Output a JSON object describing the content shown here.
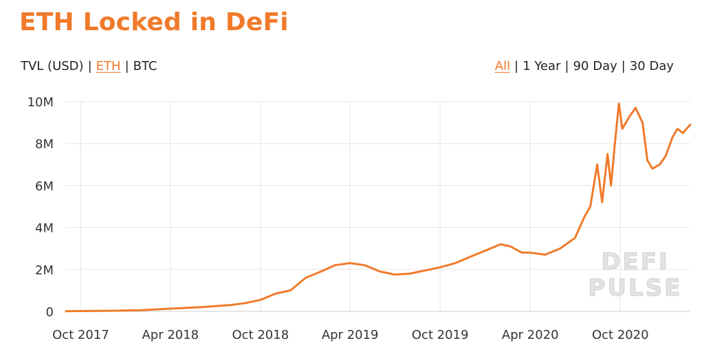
{
  "page": {
    "title": "ETH Locked in DeFi"
  },
  "unit_toggle": [
    {
      "label": "TVL (USD)",
      "active": false
    },
    {
      "label": "ETH",
      "active": true
    },
    {
      "label": "BTC",
      "active": false
    }
  ],
  "range_toggle": [
    {
      "label": "All",
      "active": true
    },
    {
      "label": "1 Year",
      "active": false
    },
    {
      "label": "90 Day",
      "active": false
    },
    {
      "label": "30 Day",
      "active": false
    }
  ],
  "separator": "|",
  "watermark": {
    "line1": "DEFI",
    "line2": "PULSE"
  },
  "colors": {
    "accent": "#f07a2a",
    "line": "#f07a2a",
    "grid": "#e6e6e6",
    "watermark": "#d9d9d9"
  },
  "chart_data": {
    "type": "line",
    "title": "ETH Locked in DeFi",
    "xlabel": "",
    "ylabel": "",
    "x_is_date": true,
    "xlim": [
      "2017-09-01",
      "2021-02-20"
    ],
    "ylim": [
      0,
      10000000
    ],
    "y_ticks": [
      0,
      2000000,
      4000000,
      6000000,
      8000000,
      10000000
    ],
    "y_tick_labels": [
      "0",
      "2M",
      "4M",
      "6M",
      "8M",
      "10M"
    ],
    "x_ticks": [
      "2017-10-01",
      "2018-04-01",
      "2018-10-01",
      "2019-04-01",
      "2019-10-01",
      "2020-04-01",
      "2020-10-01"
    ],
    "x_tick_labels": [
      "Oct 2017",
      "Apr 2018",
      "Oct 2018",
      "Apr 2019",
      "Oct 2019",
      "Apr 2020",
      "Oct 2020"
    ],
    "grid": true,
    "series": [
      {
        "points": [
          [
            "2017-09-01",
            10000
          ],
          [
            "2017-12-01",
            30000
          ],
          [
            "2018-02-01",
            60000
          ],
          [
            "2018-04-01",
            130000
          ],
          [
            "2018-06-01",
            200000
          ],
          [
            "2018-08-01",
            300000
          ],
          [
            "2018-09-01",
            400000
          ],
          [
            "2018-10-01",
            550000
          ],
          [
            "2018-11-01",
            850000
          ],
          [
            "2018-12-01",
            1000000
          ],
          [
            "2019-01-01",
            1600000
          ],
          [
            "2019-02-01",
            1900000
          ],
          [
            "2019-03-01",
            2200000
          ],
          [
            "2019-04-01",
            2300000
          ],
          [
            "2019-05-01",
            2200000
          ],
          [
            "2019-06-01",
            1900000
          ],
          [
            "2019-07-01",
            1750000
          ],
          [
            "2019-08-01",
            1800000
          ],
          [
            "2019-09-01",
            1950000
          ],
          [
            "2019-10-01",
            2100000
          ],
          [
            "2019-11-01",
            2300000
          ],
          [
            "2019-12-01",
            2600000
          ],
          [
            "2020-01-01",
            2900000
          ],
          [
            "2020-02-01",
            3200000
          ],
          [
            "2020-02-20",
            3100000
          ],
          [
            "2020-03-15",
            2800000
          ],
          [
            "2020-04-01",
            2800000
          ],
          [
            "2020-05-01",
            2700000
          ],
          [
            "2020-06-01",
            3000000
          ],
          [
            "2020-07-01",
            3500000
          ],
          [
            "2020-07-20",
            4500000
          ],
          [
            "2020-08-01",
            5000000
          ],
          [
            "2020-08-15",
            7000000
          ],
          [
            "2020-08-25",
            5200000
          ],
          [
            "2020-09-05",
            7500000
          ],
          [
            "2020-09-12",
            6000000
          ],
          [
            "2020-09-20",
            8000000
          ],
          [
            "2020-09-28",
            9900000
          ],
          [
            "2020-10-05",
            8700000
          ],
          [
            "2020-10-20",
            9300000
          ],
          [
            "2020-11-01",
            9700000
          ],
          [
            "2020-11-15",
            9000000
          ],
          [
            "2020-11-25",
            7200000
          ],
          [
            "2020-12-05",
            6800000
          ],
          [
            "2020-12-20",
            7000000
          ],
          [
            "2021-01-01",
            7400000
          ],
          [
            "2021-01-15",
            8300000
          ],
          [
            "2021-01-25",
            8700000
          ],
          [
            "2021-02-05",
            8500000
          ],
          [
            "2021-02-20",
            8900000
          ]
        ]
      }
    ]
  }
}
